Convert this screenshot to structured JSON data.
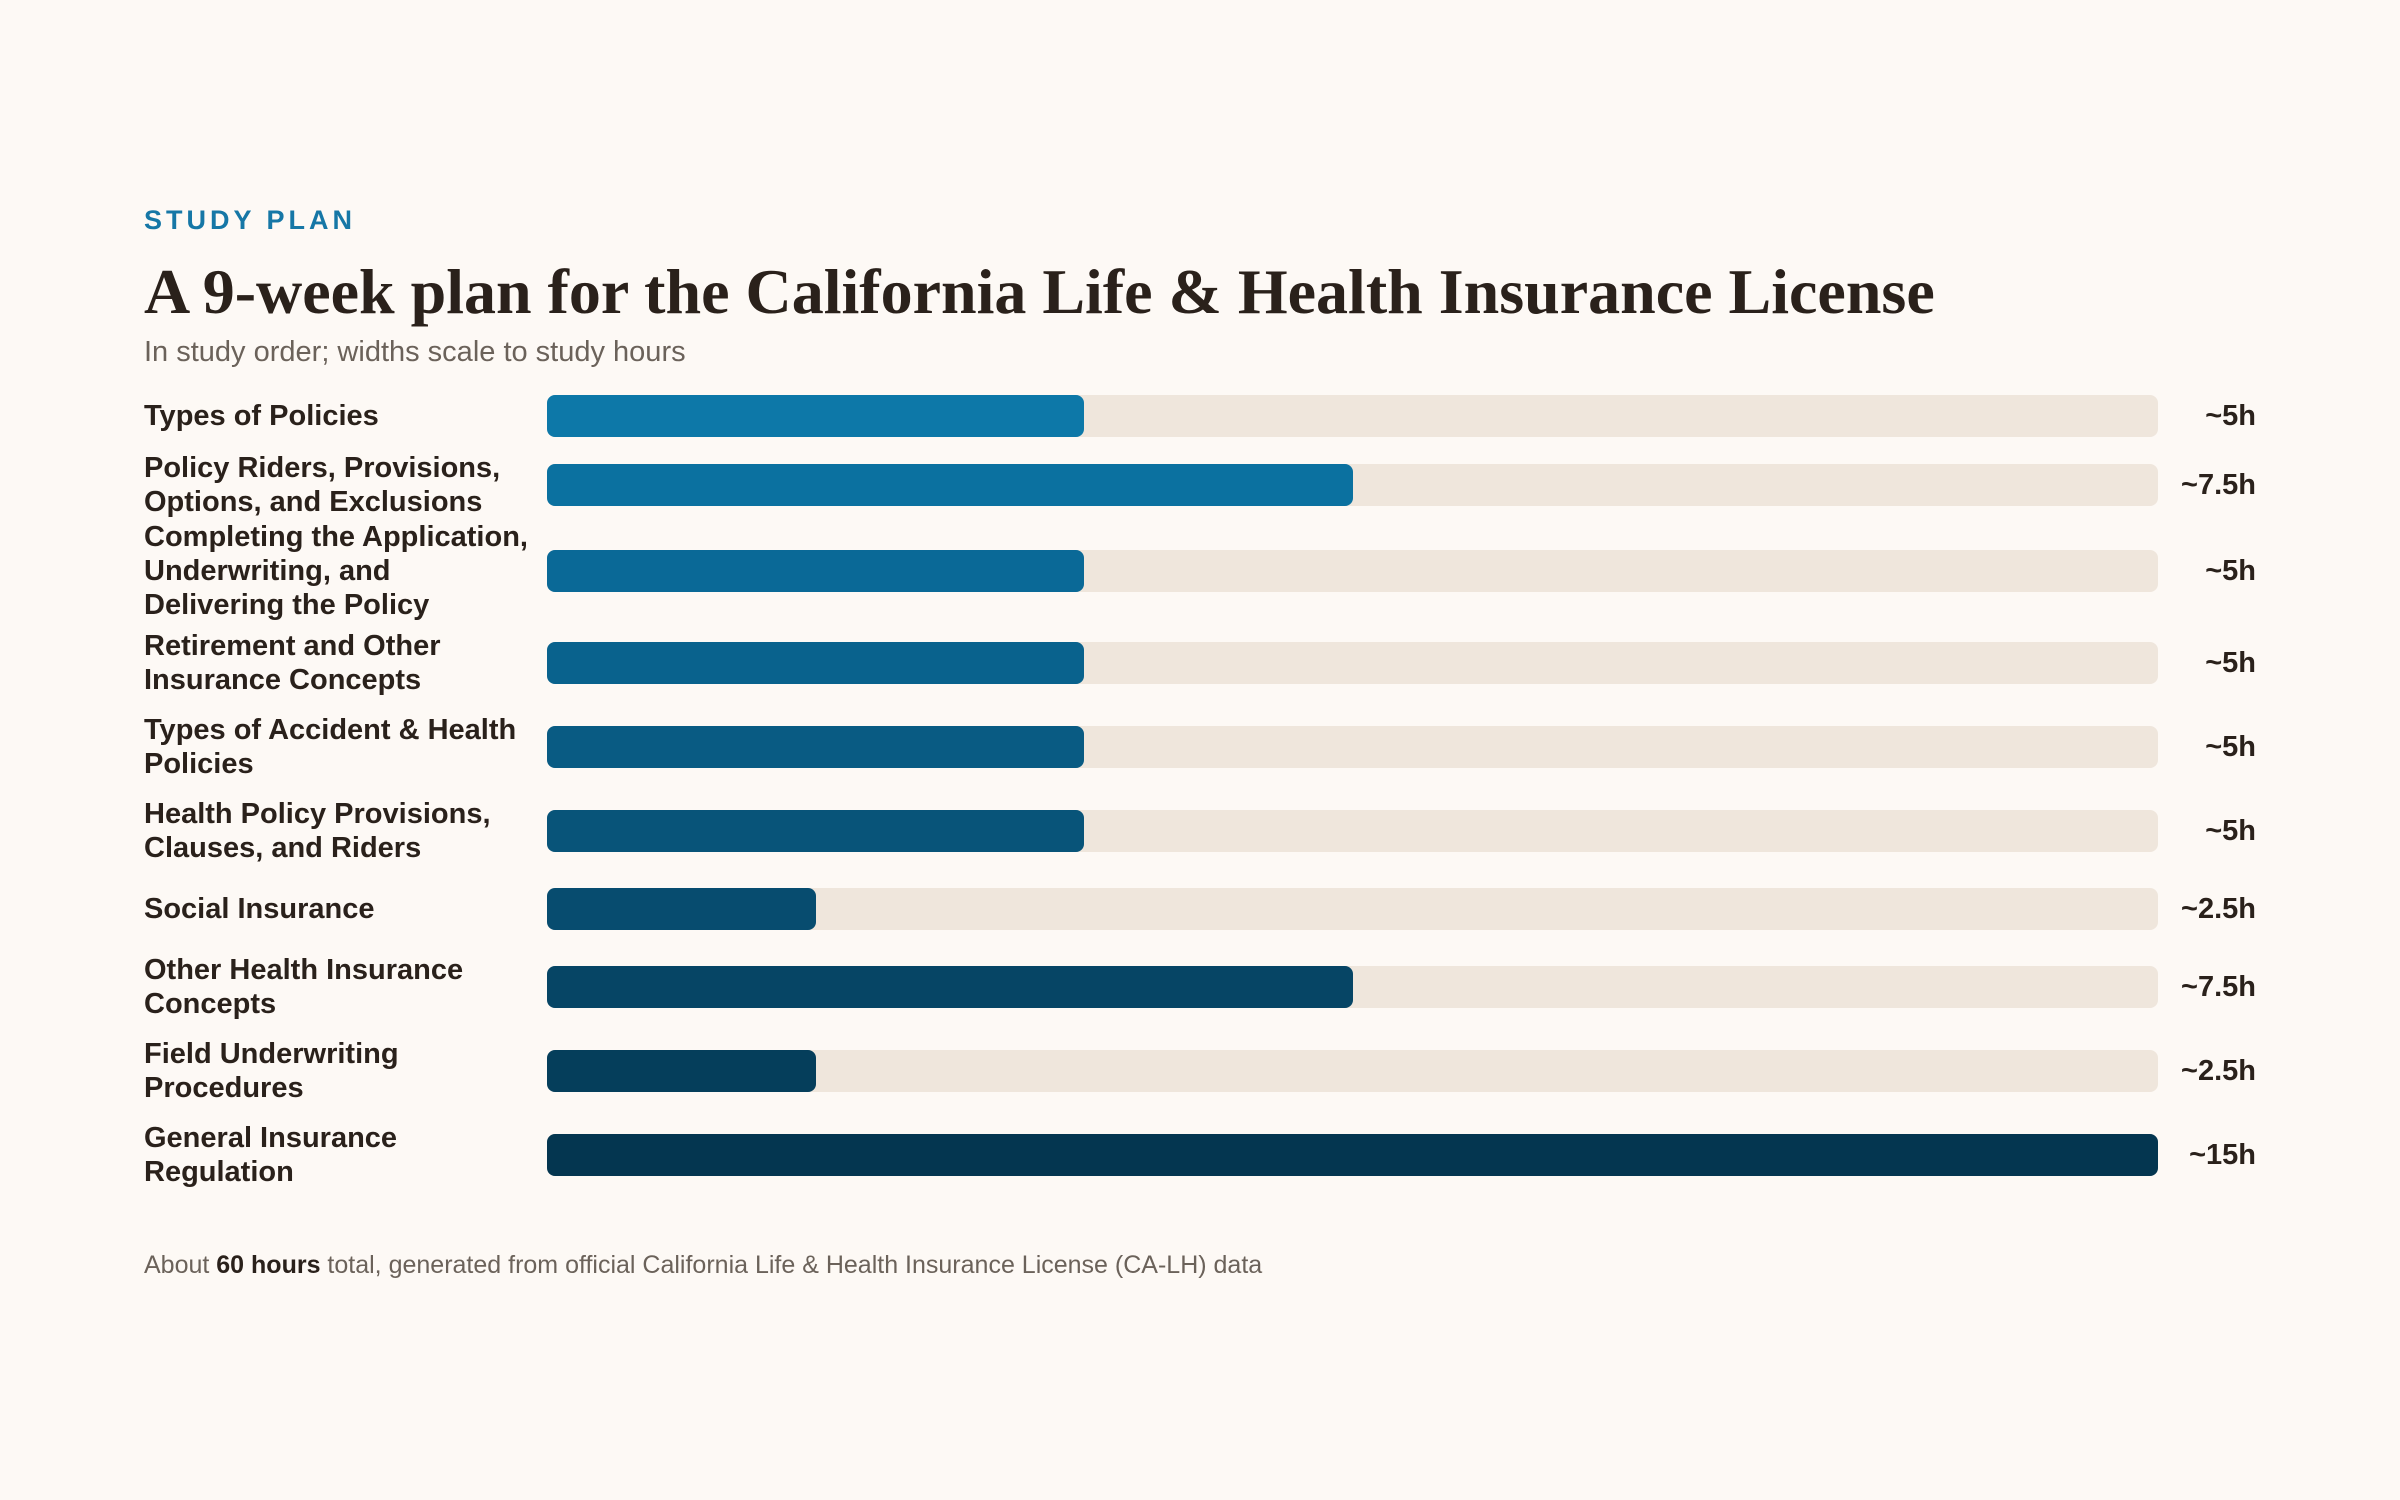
{
  "header": {
    "eyebrow": "STUDY PLAN",
    "title": "A 9-week plan for the California Life & Health Insurance License",
    "subtitle": "In study order; widths scale to study hours"
  },
  "chart_data": {
    "type": "bar",
    "orientation": "horizontal",
    "title": "A 9-week plan for the California Life & Health Insurance License",
    "subtitle": "In study order; widths scale to study hours",
    "categories": [
      "Types of Policies",
      "Policy Riders, Provisions, Options, and Exclusions",
      "Completing the Application, Underwriting, and Delivering the Policy",
      "Retirement and Other Insurance Concepts",
      "Types of Accident & Health Policies",
      "Health Policy Provisions, Clauses, and Riders",
      "Social Insurance",
      "Other Health Insurance Concepts",
      "Field Underwriting Procedures",
      "General Insurance Regulation"
    ],
    "values": [
      5,
      7.5,
      5,
      5,
      5,
      5,
      2.5,
      7.5,
      2.5,
      15
    ],
    "value_labels": [
      "~5h",
      "~7.5h",
      "~5h",
      "~5h",
      "~5h",
      "~5h",
      "~2.5h",
      "~7.5h",
      "~2.5h",
      "~15h"
    ],
    "xlim": [
      0,
      15
    ],
    "colors": [
      "#0d78a8",
      "#0b71a0",
      "#0a6997",
      "#09628d",
      "#095b83",
      "#085479",
      "#074c6f",
      "#064565",
      "#053e5b",
      "#043650"
    ],
    "track_color": "#efe6dc",
    "grid": false
  },
  "footer": {
    "prefix": "About ",
    "total": "60 hours",
    "suffix": " total, generated from official California Life & Health Insurance License (CA-LH) data"
  }
}
